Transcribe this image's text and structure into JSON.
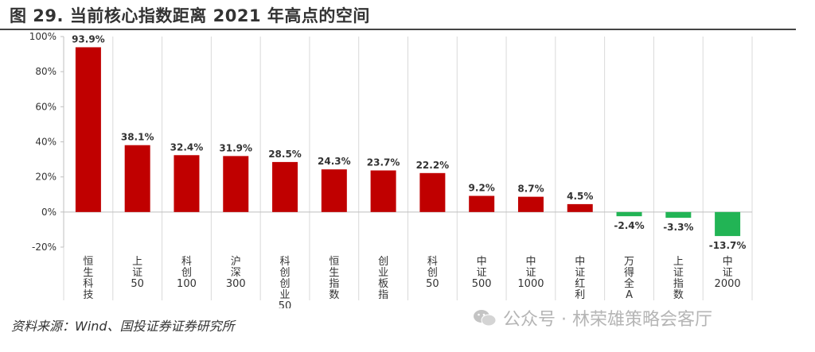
{
  "title": "图 29. 当前核心指数距离 2021 年高点的空间",
  "source": "资料来源：Wind、国投证券证券研究所",
  "watermark": "公众号 · 林荣雄策略会客厅",
  "colors": {
    "positive": "#c00000",
    "negative": "#22b455",
    "grid": "#d9d9d9"
  },
  "chart_data": {
    "type": "bar",
    "title": "",
    "xlabel": "",
    "ylabel": "",
    "ylim": [
      -20,
      100
    ],
    "yticks": [
      -20,
      0,
      20,
      40,
      60,
      80,
      100
    ],
    "ytick_labels": [
      "-20%",
      "0%",
      "20%",
      "40%",
      "60%",
      "80%",
      "100%"
    ],
    "grid": "vertical",
    "categories": [
      "恒生科技",
      "上证50",
      "科创100",
      "沪深300",
      "科创创业50",
      "恒生指数",
      "创业板指",
      "科创50",
      "中证500",
      "中证1000",
      "中证红利",
      "万得全A",
      "上证指数",
      "中证2000"
    ],
    "values": [
      93.9,
      38.1,
      32.4,
      31.9,
      28.5,
      24.3,
      23.7,
      22.2,
      9.2,
      8.7,
      4.5,
      -2.4,
      -3.3,
      -13.7
    ],
    "value_labels": [
      "93.9%",
      "38.1%",
      "32.4%",
      "31.9%",
      "28.5%",
      "24.3%",
      "23.7%",
      "22.2%",
      "9.2%",
      "8.7%",
      "4.5%",
      "-2.4%",
      "-3.3%",
      "-13.7%"
    ]
  }
}
